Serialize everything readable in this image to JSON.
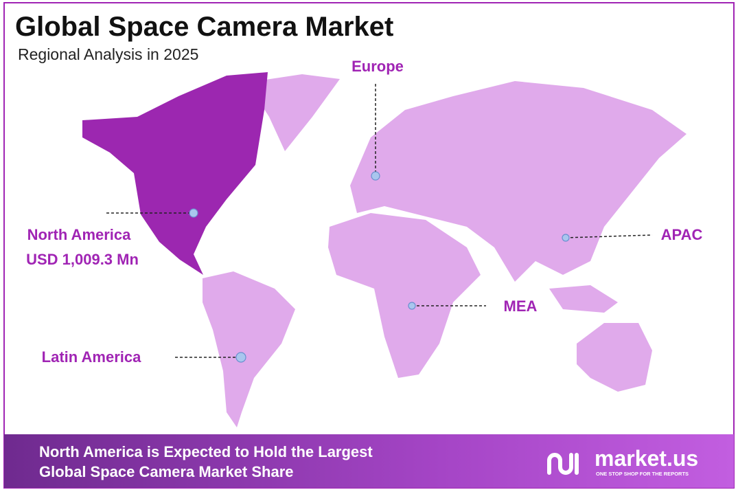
{
  "header": {
    "title": "Global Space Camera Market",
    "subtitle": "Regional Analysis in 2025"
  },
  "regions": [
    {
      "name": "North America",
      "value": "USD 1,009.3 Mn"
    },
    {
      "name": "Europe"
    },
    {
      "name": "APAC"
    },
    {
      "name": "MEA"
    },
    {
      "name": "Latin America"
    }
  ],
  "footer": {
    "lines": [
      "North America is Expected to Hold the Largest",
      "Global Space Camera Market Share"
    ],
    "brand": "market.us",
    "tagline": "ONE STOP SHOP FOR THE REPORTS"
  }
}
